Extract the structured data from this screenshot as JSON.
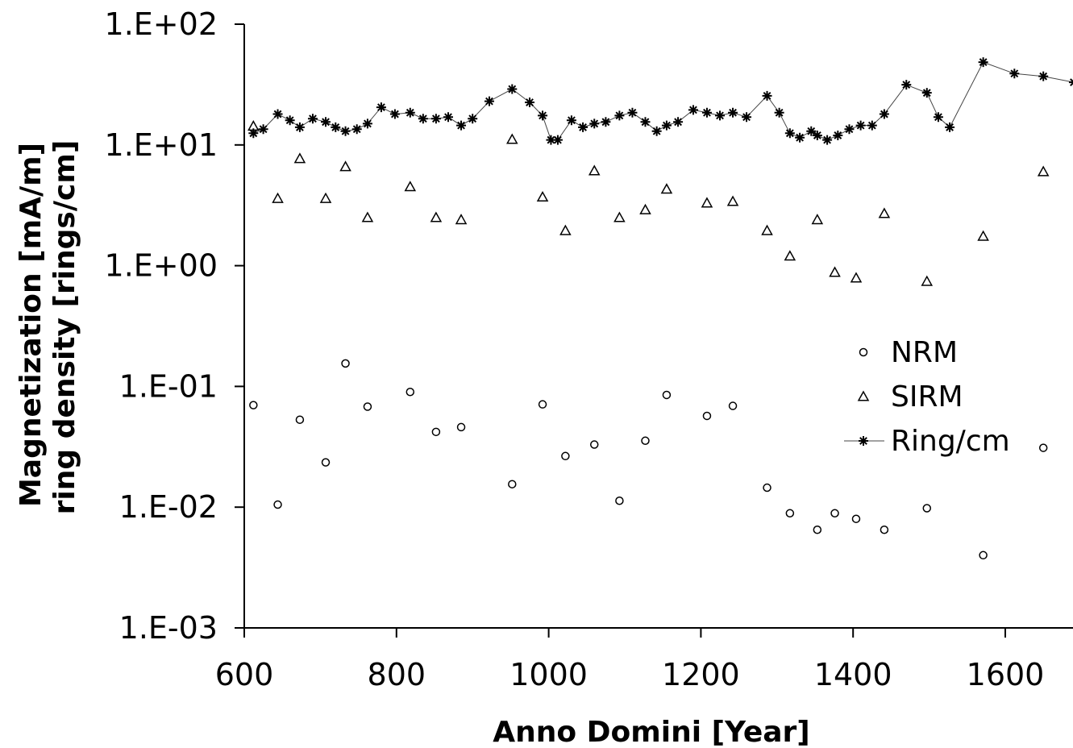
{
  "chart_data": {
    "type": "scatter",
    "title": "",
    "xlabel": "Anno Domini [Year]",
    "ylabel_line1": "Magnetization [mA/m]",
    "ylabel_line2": "ring density [rings/cm]",
    "xlim": [
      600,
      1700
    ],
    "ylim": [
      0.001,
      100
    ],
    "yscale": "log",
    "x_ticks": [
      600,
      800,
      1000,
      1200,
      1400,
      1600
    ],
    "x_tick_labels": [
      "600",
      "800",
      "1000",
      "1200",
      "1400",
      "1600"
    ],
    "y_ticks": [
      0.001,
      0.01,
      0.1,
      1,
      10,
      100
    ],
    "y_tick_labels": [
      "1.E-03",
      "1.E-02",
      "1.E-01",
      "1.E+00",
      "1.E+01",
      "1.E+02"
    ],
    "grid": false,
    "legend_position": "right",
    "series": [
      {
        "name": "NRM",
        "marker": "circle",
        "line": false,
        "points": [
          [
            612,
            0.07
          ],
          [
            644,
            0.0105
          ],
          [
            673,
            0.053
          ],
          [
            707,
            0.0235
          ],
          [
            733,
            0.155
          ],
          [
            762,
            0.068
          ],
          [
            818,
            0.09
          ],
          [
            852,
            0.042
          ],
          [
            885,
            0.046
          ],
          [
            952,
            0.0155
          ],
          [
            992,
            0.071
          ],
          [
            1022,
            0.0265
          ],
          [
            1060,
            0.033
          ],
          [
            1093,
            0.0113
          ],
          [
            1127,
            0.0355
          ],
          [
            1155,
            0.085
          ],
          [
            1208,
            0.057
          ],
          [
            1242,
            0.069
          ],
          [
            1287,
            0.0145
          ],
          [
            1317,
            0.0089
          ],
          [
            1353,
            0.0065
          ],
          [
            1376,
            0.0089
          ],
          [
            1404,
            0.008
          ],
          [
            1441,
            0.0065
          ],
          [
            1497,
            0.0098
          ],
          [
            1571,
            0.004
          ],
          [
            1650,
            0.031
          ]
        ]
      },
      {
        "name": "SIRM",
        "marker": "triangle",
        "line": false,
        "points": [
          [
            612,
            14.3
          ],
          [
            644,
            3.6
          ],
          [
            673,
            7.7
          ],
          [
            707,
            3.6
          ],
          [
            733,
            6.6
          ],
          [
            762,
            2.5
          ],
          [
            818,
            4.5
          ],
          [
            852,
            2.5
          ],
          [
            885,
            2.4
          ],
          [
            952,
            11.1
          ],
          [
            992,
            3.7
          ],
          [
            1022,
            1.95
          ],
          [
            1060,
            6.1
          ],
          [
            1093,
            2.5
          ],
          [
            1127,
            2.9
          ],
          [
            1155,
            4.3
          ],
          [
            1208,
            3.3
          ],
          [
            1242,
            3.4
          ],
          [
            1287,
            1.95
          ],
          [
            1317,
            1.2
          ],
          [
            1353,
            2.4
          ],
          [
            1376,
            0.88
          ],
          [
            1404,
            0.79
          ],
          [
            1441,
            2.7
          ],
          [
            1497,
            0.74
          ],
          [
            1571,
            1.75
          ],
          [
            1650,
            6.0
          ]
        ]
      },
      {
        "name": "Ring/cm",
        "marker": "asterisk",
        "line": true,
        "points": [
          [
            612,
            12.5
          ],
          [
            625,
            13.5
          ],
          [
            644,
            18.0
          ],
          [
            660,
            16.0
          ],
          [
            673,
            14.0
          ],
          [
            690,
            16.5
          ],
          [
            707,
            15.5
          ],
          [
            720,
            14.0
          ],
          [
            733,
            13.0
          ],
          [
            748,
            13.5
          ],
          [
            762,
            15.0
          ],
          [
            780,
            20.5
          ],
          [
            798,
            18.0
          ],
          [
            818,
            18.5
          ],
          [
            835,
            16.5
          ],
          [
            852,
            16.5
          ],
          [
            868,
            17.0
          ],
          [
            885,
            14.5
          ],
          [
            900,
            16.5
          ],
          [
            922,
            23.0
          ],
          [
            952,
            29.0
          ],
          [
            975,
            22.5
          ],
          [
            992,
            17.5
          ],
          [
            1003,
            11.0
          ],
          [
            1012,
            11.0
          ],
          [
            1030,
            16.0
          ],
          [
            1045,
            14.0
          ],
          [
            1060,
            15.0
          ],
          [
            1075,
            15.5
          ],
          [
            1093,
            17.5
          ],
          [
            1110,
            18.5
          ],
          [
            1127,
            15.5
          ],
          [
            1142,
            13.0
          ],
          [
            1155,
            14.5
          ],
          [
            1170,
            15.5
          ],
          [
            1190,
            19.5
          ],
          [
            1208,
            18.5
          ],
          [
            1225,
            17.5
          ],
          [
            1242,
            18.5
          ],
          [
            1260,
            17.0
          ],
          [
            1287,
            25.5
          ],
          [
            1303,
            18.5
          ],
          [
            1317,
            12.5
          ],
          [
            1330,
            11.5
          ],
          [
            1345,
            13.0
          ],
          [
            1353,
            12.0
          ],
          [
            1366,
            11.0
          ],
          [
            1380,
            12.0
          ],
          [
            1395,
            13.5
          ],
          [
            1410,
            14.5
          ],
          [
            1425,
            14.5
          ],
          [
            1441,
            18.0
          ],
          [
            1470,
            31.5
          ],
          [
            1497,
            27.0
          ],
          [
            1512,
            17.0
          ],
          [
            1527,
            14.0
          ],
          [
            1571,
            48.5
          ],
          [
            1612,
            39.0
          ],
          [
            1650,
            37.0
          ],
          [
            1690,
            33.0
          ]
        ]
      }
    ]
  }
}
